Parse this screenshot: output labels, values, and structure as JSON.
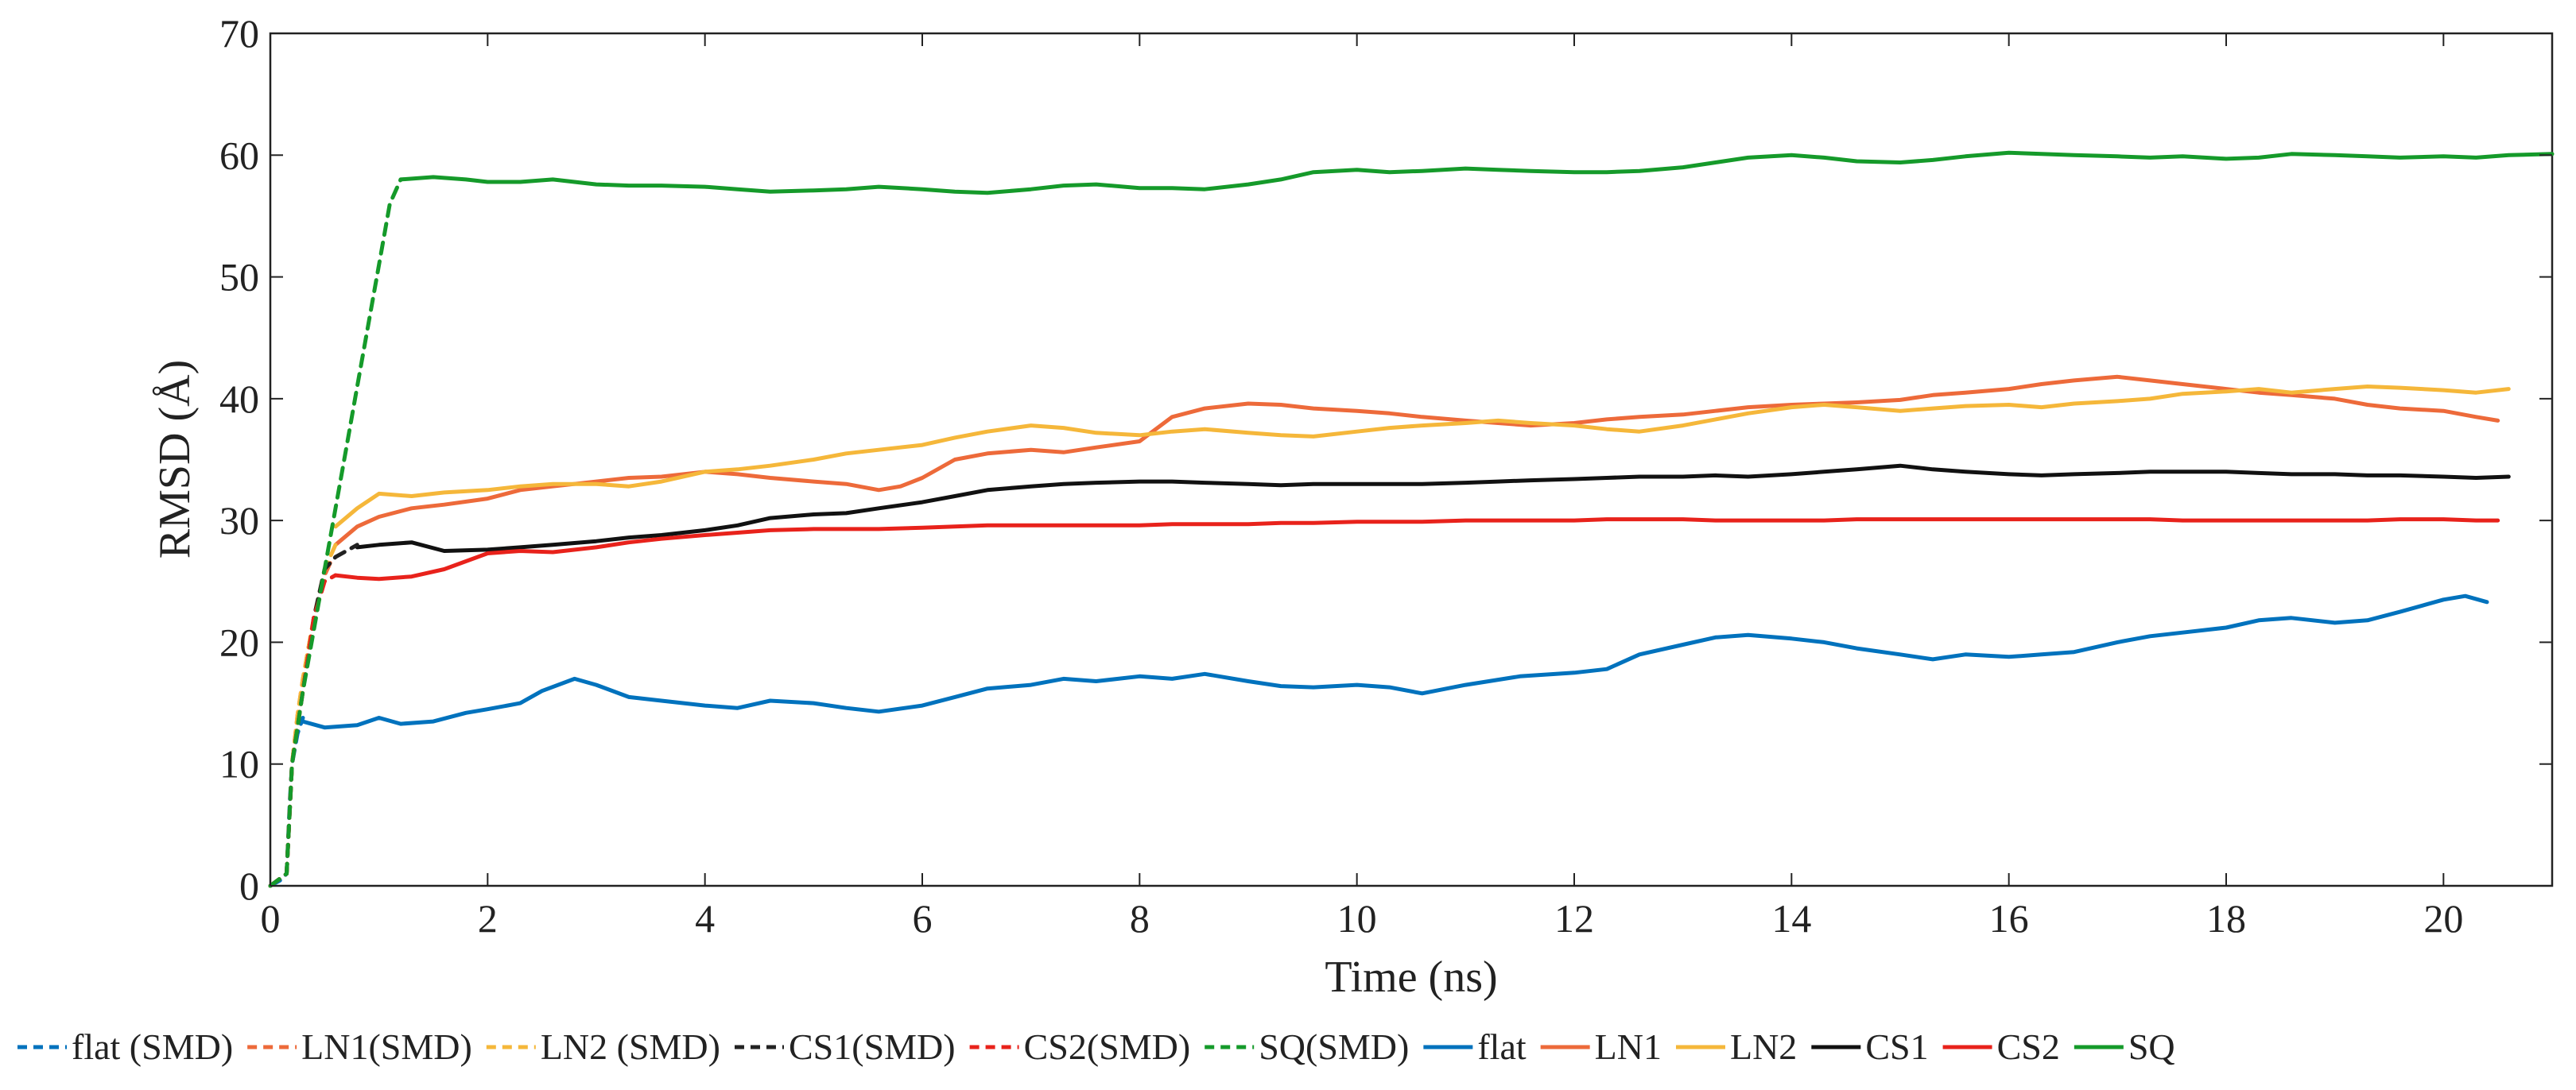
{
  "chart_data": {
    "type": "line",
    "xlabel": "Time (ns)",
    "ylabel": "RMSD (Å)",
    "xlim": [
      0,
      21
    ],
    "ylim": [
      0,
      70
    ],
    "xticks": [
      0,
      2,
      4,
      6,
      8,
      10,
      12,
      14,
      16,
      18,
      20
    ],
    "yticks": [
      0,
      10,
      20,
      30,
      40,
      50,
      60,
      70
    ],
    "grid": false,
    "legend_position": "bottom",
    "series": [
      {
        "name": "flat (SMD)",
        "color": "#0072BD",
        "dash": true,
        "x": [
          0,
          0.1,
          0.15,
          0.18,
          0.2,
          0.25,
          0.3
        ],
        "y": [
          0,
          0.5,
          1.0,
          7,
          10,
          12.5,
          13.8
        ]
      },
      {
        "name": "LN1(SMD)",
        "color": "#ED6A3A",
        "dash": true,
        "x": [
          0,
          0.15,
          0.2,
          0.25,
          0.3,
          0.4,
          0.5,
          0.55,
          0.6
        ],
        "y": [
          0,
          1,
          10,
          14,
          17,
          22,
          25.5,
          26.5,
          27
        ]
      },
      {
        "name": "LN2 (SMD)",
        "color": "#F5B73A",
        "dash": true,
        "x": [
          0,
          0.15,
          0.2,
          0.25,
          0.3,
          0.4,
          0.5,
          0.6
        ],
        "y": [
          0,
          1,
          10,
          14,
          17,
          22,
          26,
          28
        ]
      },
      {
        "name": "CS1(SMD)",
        "color": "#222222",
        "dash": true,
        "x": [
          0,
          0.15,
          0.2,
          0.3,
          0.4,
          0.5,
          0.6,
          0.8
        ],
        "y": [
          0,
          1,
          10,
          16,
          22,
          26,
          27,
          28
        ]
      },
      {
        "name": "CS2(SMD)",
        "color": "#E8221B",
        "dash": true,
        "x": [
          0,
          0.15,
          0.2,
          0.3,
          0.4,
          0.5,
          0.6
        ],
        "y": [
          0,
          1,
          10,
          16,
          22,
          25,
          25.5
        ]
      },
      {
        "name": "SQ(SMD)",
        "color": "#159A2A",
        "dash": true,
        "x": [
          0,
          0.15,
          0.2,
          0.3,
          0.4,
          0.5,
          0.6,
          0.7,
          0.8,
          0.9,
          1.0,
          1.1,
          1.2
        ],
        "y": [
          0,
          1,
          10,
          16,
          21,
          26,
          31,
          36,
          41,
          46,
          51,
          56,
          58
        ]
      },
      {
        "name": "flat",
        "color": "#0072BD",
        "dash": false,
        "x": [
          0.3,
          0.5,
          0.8,
          1.0,
          1.2,
          1.5,
          1.8,
          2.0,
          2.3,
          2.5,
          2.8,
          3.0,
          3.3,
          3.6,
          4.0,
          4.3,
          4.6,
          5.0,
          5.3,
          5.6,
          6.0,
          6.3,
          6.6,
          7.0,
          7.3,
          7.6,
          8.0,
          8.3,
          8.6,
          9.0,
          9.3,
          9.6,
          10.0,
          10.3,
          10.6,
          11.0,
          11.5,
          12.0,
          12.3,
          12.6,
          13.0,
          13.3,
          13.6,
          14.0,
          14.3,
          14.6,
          15.0,
          15.3,
          15.6,
          16.0,
          16.3,
          16.6,
          17.0,
          17.3,
          17.6,
          18.0,
          18.3,
          18.6,
          19.0,
          19.3,
          19.6,
          20.0,
          20.2,
          20.4
        ],
        "y": [
          13.5,
          13,
          13.2,
          13.8,
          13.3,
          13.5,
          14.2,
          14.5,
          15.0,
          16.0,
          17.0,
          16.5,
          15.5,
          15.2,
          14.8,
          14.6,
          15.2,
          15.0,
          14.6,
          14.3,
          14.8,
          15.5,
          16.2,
          16.5,
          17.0,
          16.8,
          17.2,
          17.0,
          17.4,
          16.8,
          16.4,
          16.3,
          16.5,
          16.3,
          15.8,
          16.5,
          17.2,
          17.5,
          17.8,
          19.0,
          19.8,
          20.4,
          20.6,
          20.3,
          20.0,
          19.5,
          19.0,
          18.6,
          19.0,
          18.8,
          19.0,
          19.2,
          20.0,
          20.5,
          20.8,
          21.2,
          21.8,
          22.0,
          21.6,
          21.8,
          22.5,
          23.5,
          23.8,
          23.3
        ]
      },
      {
        "name": "LN1",
        "color": "#ED6A3A",
        "dash": false,
        "x": [
          0.6,
          0.8,
          1.0,
          1.3,
          1.6,
          2.0,
          2.3,
          2.6,
          3.0,
          3.3,
          3.6,
          4.0,
          4.3,
          4.6,
          5.0,
          5.3,
          5.6,
          5.8,
          6.0,
          6.3,
          6.6,
          7.0,
          7.3,
          7.6,
          8.0,
          8.3,
          8.6,
          9.0,
          9.3,
          9.6,
          10.0,
          10.3,
          10.6,
          11.0,
          11.3,
          11.6,
          12.0,
          12.3,
          12.6,
          13.0,
          13.3,
          13.6,
          14.0,
          14.3,
          14.6,
          15.0,
          15.3,
          15.6,
          16.0,
          16.3,
          16.6,
          17.0,
          17.3,
          17.6,
          18.0,
          18.3,
          18.6,
          19.0,
          19.3,
          19.6,
          20.0,
          20.3,
          20.5
        ],
        "y": [
          28,
          29.5,
          30.3,
          31,
          31.3,
          31.8,
          32.5,
          32.8,
          33.2,
          33.5,
          33.6,
          34,
          33.8,
          33.5,
          33.2,
          33,
          32.5,
          32.8,
          33.5,
          35,
          35.5,
          35.8,
          35.6,
          36,
          36.5,
          38.5,
          39.2,
          39.6,
          39.5,
          39.2,
          39.0,
          38.8,
          38.5,
          38.2,
          38,
          37.8,
          38.0,
          38.3,
          38.5,
          38.7,
          39.0,
          39.3,
          39.5,
          39.6,
          39.7,
          39.9,
          40.3,
          40.5,
          40.8,
          41.2,
          41.5,
          41.8,
          41.5,
          41.2,
          40.8,
          40.5,
          40.3,
          40,
          39.5,
          39.2,
          39.0,
          38.5,
          38.2
        ]
      },
      {
        "name": "LN2",
        "color": "#F5B73A",
        "dash": false,
        "x": [
          0.6,
          0.8,
          1.0,
          1.3,
          1.6,
          2.0,
          2.3,
          2.6,
          3.0,
          3.3,
          3.6,
          4.0,
          4.3,
          4.6,
          5.0,
          5.3,
          5.6,
          6.0,
          6.3,
          6.6,
          7.0,
          7.3,
          7.6,
          8.0,
          8.3,
          8.6,
          9.0,
          9.3,
          9.6,
          10.0,
          10.3,
          10.6,
          11.0,
          11.3,
          11.6,
          12.0,
          12.3,
          12.6,
          13.0,
          13.3,
          13.6,
          14.0,
          14.3,
          14.6,
          15.0,
          15.3,
          15.6,
          16.0,
          16.3,
          16.6,
          17.0,
          17.3,
          17.6,
          18.0,
          18.3,
          18.6,
          19.0,
          19.3,
          19.6,
          20.0,
          20.3,
          20.6
        ],
        "y": [
          29.5,
          31,
          32.2,
          32,
          32.3,
          32.5,
          32.8,
          33,
          33,
          32.8,
          33.2,
          34,
          34.2,
          34.5,
          35,
          35.5,
          35.8,
          36.2,
          36.8,
          37.3,
          37.8,
          37.6,
          37.2,
          37.0,
          37.3,
          37.5,
          37.2,
          37.0,
          36.9,
          37.3,
          37.6,
          37.8,
          38.0,
          38.2,
          38.0,
          37.8,
          37.5,
          37.3,
          37.8,
          38.3,
          38.8,
          39.3,
          39.5,
          39.3,
          39.0,
          39.2,
          39.4,
          39.5,
          39.3,
          39.6,
          39.8,
          40.0,
          40.4,
          40.6,
          40.8,
          40.5,
          40.8,
          41.0,
          40.9,
          40.7,
          40.5,
          40.8
        ]
      },
      {
        "name": "CS1",
        "color": "#111111",
        "dash": false,
        "x": [
          0.8,
          1.0,
          1.3,
          1.6,
          2.0,
          2.3,
          2.6,
          3.0,
          3.3,
          3.6,
          4.0,
          4.3,
          4.6,
          5.0,
          5.3,
          5.6,
          6.0,
          6.3,
          6.6,
          7.0,
          7.3,
          7.6,
          8.0,
          8.3,
          8.6,
          9.0,
          9.3,
          9.6,
          10.0,
          10.3,
          10.6,
          11.0,
          11.3,
          11.6,
          12.0,
          12.3,
          12.6,
          13.0,
          13.3,
          13.6,
          14.0,
          14.3,
          14.6,
          15.0,
          15.3,
          15.6,
          16.0,
          16.3,
          16.6,
          17.0,
          17.3,
          17.6,
          18.0,
          18.3,
          18.6,
          19.0,
          19.3,
          19.6,
          20.0,
          20.3,
          20.6
        ],
        "y": [
          27.8,
          28,
          28.2,
          27.5,
          27.6,
          27.8,
          28,
          28.3,
          28.6,
          28.8,
          29.2,
          29.6,
          30.2,
          30.5,
          30.6,
          31.0,
          31.5,
          32.0,
          32.5,
          32.8,
          33.0,
          33.1,
          33.2,
          33.2,
          33.1,
          33.0,
          32.9,
          33.0,
          33.0,
          33.0,
          33.0,
          33.1,
          33.2,
          33.3,
          33.4,
          33.5,
          33.6,
          33.6,
          33.7,
          33.6,
          33.8,
          34.0,
          34.2,
          34.5,
          34.2,
          34.0,
          33.8,
          33.7,
          33.8,
          33.9,
          34.0,
          34.0,
          34.0,
          33.9,
          33.8,
          33.8,
          33.7,
          33.7,
          33.6,
          33.5,
          33.6
        ]
      },
      {
        "name": "CS2",
        "color": "#E8221B",
        "dash": false,
        "x": [
          0.6,
          0.8,
          1.0,
          1.3,
          1.6,
          2.0,
          2.3,
          2.6,
          3.0,
          3.3,
          3.6,
          4.0,
          4.3,
          4.6,
          5.0,
          5.3,
          5.6,
          6.0,
          6.3,
          6.6,
          7.0,
          7.3,
          7.6,
          8.0,
          8.3,
          8.6,
          9.0,
          9.3,
          9.6,
          10.0,
          10.3,
          10.6,
          11.0,
          11.3,
          11.6,
          12.0,
          12.3,
          12.6,
          13.0,
          13.3,
          13.6,
          14.0,
          14.3,
          14.6,
          15.0,
          15.3,
          15.6,
          16.0,
          16.3,
          16.6,
          17.0,
          17.3,
          17.6,
          18.0,
          18.3,
          18.6,
          19.0,
          19.3,
          19.6,
          20.0,
          20.3,
          20.5
        ],
        "y": [
          25.5,
          25.3,
          25.2,
          25.4,
          26,
          27.3,
          27.5,
          27.4,
          27.8,
          28.2,
          28.5,
          28.8,
          29.0,
          29.2,
          29.3,
          29.3,
          29.3,
          29.4,
          29.5,
          29.6,
          29.6,
          29.6,
          29.6,
          29.6,
          29.7,
          29.7,
          29.7,
          29.8,
          29.8,
          29.9,
          29.9,
          29.9,
          30.0,
          30.0,
          30.0,
          30.0,
          30.1,
          30.1,
          30.1,
          30.0,
          30.0,
          30.0,
          30.0,
          30.1,
          30.1,
          30.1,
          30.1,
          30.1,
          30.1,
          30.1,
          30.1,
          30.1,
          30.0,
          30.0,
          30.0,
          30.0,
          30.0,
          30.0,
          30.1,
          30.1,
          30.0,
          30.0
        ]
      },
      {
        "name": "SQ",
        "color": "#159A2A",
        "dash": false,
        "x": [
          1.2,
          1.5,
          1.8,
          2.0,
          2.3,
          2.6,
          3.0,
          3.3,
          3.6,
          4.0,
          4.3,
          4.6,
          5.0,
          5.3,
          5.6,
          6.0,
          6.3,
          6.6,
          7.0,
          7.3,
          7.6,
          8.0,
          8.3,
          8.6,
          9.0,
          9.3,
          9.6,
          10.0,
          10.3,
          10.6,
          11.0,
          11.3,
          11.6,
          12.0,
          12.3,
          12.6,
          13.0,
          13.3,
          13.6,
          14.0,
          14.3,
          14.6,
          15.0,
          15.3,
          15.6,
          16.0,
          16.3,
          16.6,
          17.0,
          17.3,
          17.6,
          18.0,
          18.3,
          18.6,
          19.0,
          19.3,
          19.6,
          20.0,
          20.3,
          20.6,
          21.0
        ],
        "y": [
          58,
          58.2,
          58,
          57.8,
          57.8,
          58,
          57.6,
          57.5,
          57.5,
          57.4,
          57.2,
          57,
          57.1,
          57.2,
          57.4,
          57.2,
          57.0,
          56.9,
          57.2,
          57.5,
          57.6,
          57.3,
          57.3,
          57.2,
          57.6,
          58.0,
          58.6,
          58.8,
          58.6,
          58.7,
          58.9,
          58.8,
          58.7,
          58.6,
          58.6,
          58.7,
          59.0,
          59.4,
          59.8,
          60.0,
          59.8,
          59.5,
          59.4,
          59.6,
          59.9,
          60.2,
          60.1,
          60.0,
          59.9,
          59.8,
          59.9,
          59.7,
          59.8,
          60.1,
          60.0,
          59.9,
          59.8,
          59.9,
          59.8,
          60.0,
          60.1
        ]
      }
    ]
  }
}
